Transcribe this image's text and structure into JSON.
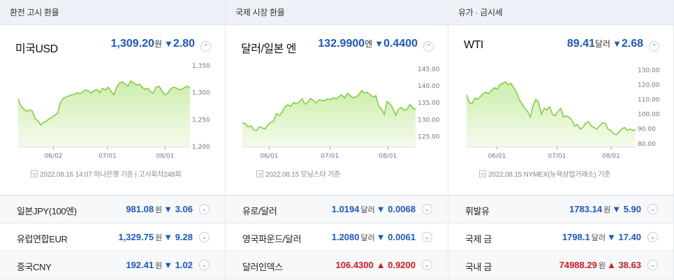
{
  "panels": [
    {
      "header": "환전 고시 환율",
      "main": {
        "name": "미국USD",
        "price": "1,309.20",
        "unit": "원",
        "change": "2.80",
        "direction": "down"
      },
      "source": "2022.08.16 14:07 하나은행 기준 | 고시회차248회",
      "chart_data": {
        "type": "area",
        "x_ticks": [
          "06/02",
          "07/01",
          "08/01"
        ],
        "y_ticks": [
          "1,350",
          "1,300",
          "1,250",
          "1,200"
        ],
        "ylim": [
          1200,
          1350
        ],
        "values": [
          1288,
          1275,
          1270,
          1265,
          1268,
          1266,
          1252,
          1248,
          1240,
          1245,
          1247,
          1252,
          1254,
          1258,
          1262,
          1282,
          1289,
          1292,
          1294,
          1296,
          1297,
          1300,
          1298,
          1302,
          1305,
          1303,
          1299,
          1304,
          1306,
          1300,
          1308,
          1305,
          1310,
          1302,
          1296,
          1310,
          1318,
          1320,
          1316,
          1312,
          1322,
          1318,
          1314,
          1316,
          1310,
          1306,
          1308,
          1302,
          1299,
          1310,
          1312,
          1304,
          1296,
          1298,
          1306,
          1310,
          1309,
          1306,
          1306,
          1309,
          1312,
          1309
        ]
      },
      "rows": [
        {
          "name": "일본JPY(100엔)",
          "price": "981.08",
          "unit": "원",
          "change": "3.06",
          "direction": "down"
        },
        {
          "name": "유럽연합EUR",
          "price": "1,329.75",
          "unit": "원",
          "change": "9.28",
          "direction": "down"
        },
        {
          "name": "중국CNY",
          "price": "192.41",
          "unit": "원",
          "change": "1.02",
          "direction": "down"
        }
      ]
    },
    {
      "header": "국제 시장 환율",
      "main": {
        "name": "달러/일본 엔",
        "price": "132.9900",
        "unit": "엔",
        "change": "0.4400",
        "direction": "down"
      },
      "source": "2022.08.15 모닝스타 기준",
      "chart_data": {
        "type": "area",
        "x_ticks": [
          "06/01",
          "07/01",
          "08/01"
        ],
        "y_ticks": [
          "145.00",
          "140.00",
          "135.00",
          "130.00",
          "125.00"
        ],
        "ylim": [
          122,
          146
        ],
        "values": [
          129,
          128.8,
          127.8,
          128.2,
          127,
          126.8,
          127.9,
          127.5,
          127.3,
          128.4,
          129.3,
          129.5,
          131.8,
          131.2,
          132.2,
          133.8,
          134.4,
          133.9,
          135.1,
          134.7,
          135.2,
          136.2,
          134.6,
          135.1,
          136.3,
          135.7,
          134.9,
          135.9,
          135.7,
          135.6,
          136.2,
          135.9,
          136.5,
          136.1,
          136.8,
          137.3,
          136.4,
          137.8,
          137.1,
          136.5,
          136.7,
          137.4,
          138.6,
          137.8,
          138.1,
          137.4,
          136.7,
          137.1,
          133.9,
          133.2,
          131.5,
          135.4,
          134.6,
          133.3,
          131.3,
          133.1,
          133.6,
          132.8,
          133,
          134.5,
          133.5,
          133
        ]
      },
      "rows": [
        {
          "name": "유로/달러",
          "price": "1.0194",
          "unit": "달러",
          "change": "0.0068",
          "direction": "down"
        },
        {
          "name": "영국파운드/달러",
          "price": "1.2080",
          "unit": "달러",
          "change": "0.0061",
          "direction": "down"
        },
        {
          "name": "달러인덱스",
          "price": "106.4300",
          "unit": "",
          "change": "0.9200",
          "direction": "up"
        }
      ]
    },
    {
      "header": "유가 · 금시세",
      "main": {
        "name": "WTI",
        "price": "89.41",
        "unit": "달러",
        "change": "2.68",
        "direction": "down"
      },
      "source": "2022.08.15 NYMEX(뉴욕상업거래소) 기준",
      "chart_data": {
        "type": "area",
        "x_ticks": [
          "06/01",
          "07/01",
          "08/01"
        ],
        "y_ticks": [
          "130.00",
          "120.00",
          "110.00",
          "100.00",
          "90.00",
          "80.00"
        ],
        "ylim": [
          78,
          133
        ],
        "values": [
          113,
          108,
          107,
          111,
          110,
          112,
          114,
          115,
          114,
          116,
          118,
          117,
          120,
          121,
          122,
          120,
          121,
          118,
          115,
          110,
          107,
          104,
          102,
          98,
          106,
          110,
          108,
          100,
          104,
          103,
          105,
          100,
          99,
          102,
          104,
          98,
          99,
          98,
          96,
          92,
          93,
          90,
          91,
          94,
          95,
          92,
          91,
          90,
          92,
          94,
          94,
          90,
          89,
          87,
          86,
          88,
          90,
          91,
          89,
          90,
          89,
          89.4
        ]
      },
      "rows": [
        {
          "name": "휘발유",
          "price": "1783.14",
          "unit": "원",
          "change": "5.90",
          "direction": "down"
        },
        {
          "name": "국제 금",
          "price": "1798.1",
          "unit": "달러",
          "change": "17.40",
          "direction": "down"
        },
        {
          "name": "국내 금",
          "price": "74988.29",
          "unit": "원",
          "change": "38.63",
          "direction": "up"
        }
      ]
    }
  ],
  "colors": {
    "down": "#1c58c4",
    "up": "#d31b1b",
    "line": "#7fcb3a",
    "fill_top": "#cdeead",
    "fill_bottom": "#f4fbec"
  },
  "icons": {
    "down": "▼",
    "up": "▲",
    "collapse": "⌃",
    "expand": "⌄"
  }
}
